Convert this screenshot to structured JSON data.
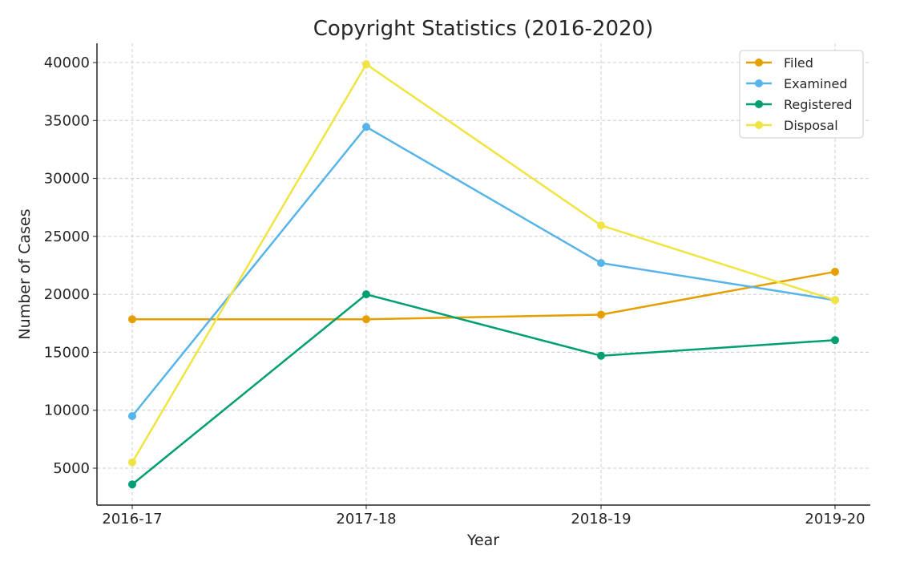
{
  "chart_data": {
    "type": "line",
    "title": "Copyright Statistics (2016-2020)",
    "xlabel": "Year",
    "ylabel": "Number of Cases",
    "categories": [
      "2016-17",
      "2017-18",
      "2018-19",
      "2019-20"
    ],
    "ylim": [
      1818,
      41660
    ],
    "yticks": [
      5000,
      10000,
      15000,
      20000,
      25000,
      30000,
      35000,
      40000
    ],
    "grid": true,
    "legend_position": "top-right",
    "series": [
      {
        "name": "Filed",
        "color": "#E69F00",
        "values": [
          17850,
          17850,
          18250,
          21950
        ]
      },
      {
        "name": "Examined",
        "color": "#56B4E9",
        "values": [
          9500,
          34450,
          22700,
          19500
        ]
      },
      {
        "name": "Registered",
        "color": "#009E73",
        "values": [
          3600,
          20000,
          14700,
          16050
        ]
      },
      {
        "name": "Disposal",
        "color": "#F0E442",
        "values": [
          5500,
          39850,
          25950,
          19500
        ]
      }
    ]
  }
}
